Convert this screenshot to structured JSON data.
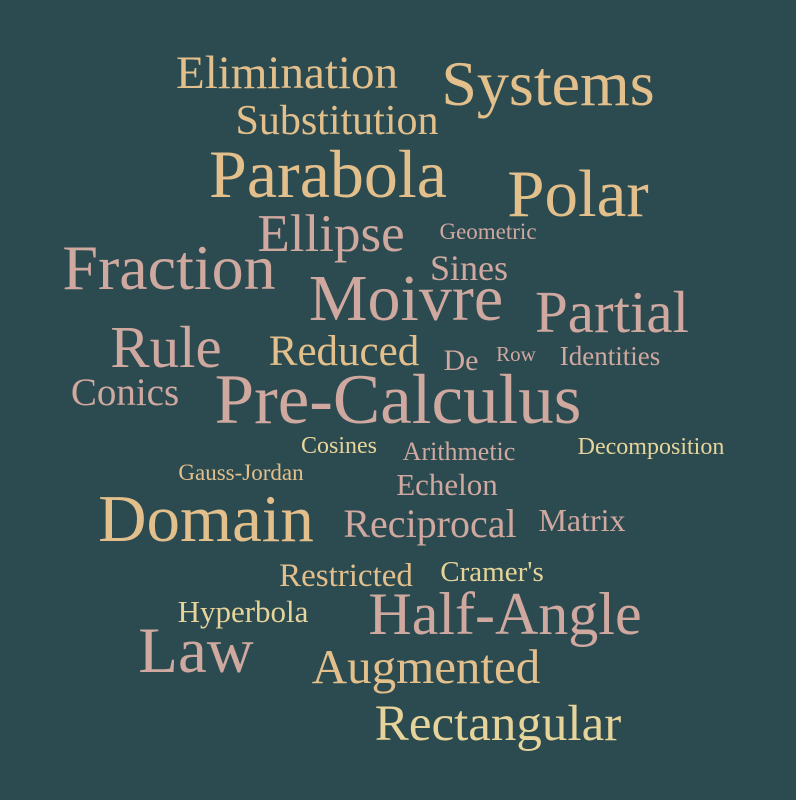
{
  "colors": {
    "background": "#2c4b51",
    "tan": "#e2bf8b",
    "pink": "#cfa89f",
    "yellow": "#e7d49a"
  },
  "words": [
    {
      "text": "Elimination",
      "color": "#e2bf8b"
    },
    {
      "text": "Systems",
      "color": "#e2bf8b"
    },
    {
      "text": "Substitution",
      "color": "#e2bf8b"
    },
    {
      "text": "Parabola",
      "color": "#e2bf8b"
    },
    {
      "text": "Polar",
      "color": "#e2bf8b"
    },
    {
      "text": "Ellipse",
      "color": "#cfa89f"
    },
    {
      "text": "Geometric",
      "color": "#cfa89f"
    },
    {
      "text": "Fraction",
      "color": "#cfa89f"
    },
    {
      "text": "Sines",
      "color": "#cfa89f"
    },
    {
      "text": "Moivre",
      "color": "#cfa89f"
    },
    {
      "text": "Partial",
      "color": "#cfa89f"
    },
    {
      "text": "Rule",
      "color": "#cfa89f"
    },
    {
      "text": "Reduced",
      "color": "#e2bf8b"
    },
    {
      "text": "De",
      "color": "#cfa89f"
    },
    {
      "text": "Row",
      "color": "#cfa89f"
    },
    {
      "text": "Identities",
      "color": "#cfa89f"
    },
    {
      "text": "Conics",
      "color": "#cfa89f"
    },
    {
      "text": "Pre-Calculus",
      "color": "#cfa89f"
    },
    {
      "text": "Cosines",
      "color": "#e7d49a"
    },
    {
      "text": "Arithmetic",
      "color": "#cfa89f"
    },
    {
      "text": "Decomposition",
      "color": "#e7d49a"
    },
    {
      "text": "Gauss-Jordan",
      "color": "#e2bf8b"
    },
    {
      "text": "Echelon",
      "color": "#cfa89f"
    },
    {
      "text": "Domain",
      "color": "#e2bf8b"
    },
    {
      "text": "Reciprocal",
      "color": "#cfa89f"
    },
    {
      "text": "Matrix",
      "color": "#cfa89f"
    },
    {
      "text": "Restricted",
      "color": "#e2bf8b"
    },
    {
      "text": "Cramer's",
      "color": "#e7d49a"
    },
    {
      "text": "Hyperbola",
      "color": "#e7d49a"
    },
    {
      "text": "Half-Angle",
      "color": "#cfa89f"
    },
    {
      "text": "Law",
      "color": "#cfa89f"
    },
    {
      "text": "Augmented",
      "color": "#e2bf8b"
    },
    {
      "text": "Rectangular",
      "color": "#e7d49a"
    }
  ]
}
